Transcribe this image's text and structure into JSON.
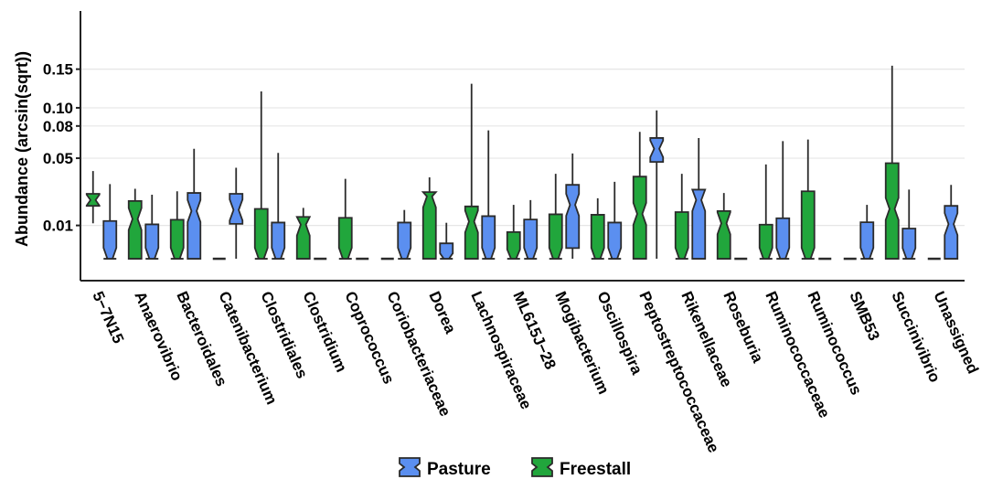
{
  "chart_data": {
    "type": "boxplot",
    "title": "",
    "xlabel": "",
    "ylabel": "Abundance (arcsin(sqrt))",
    "y_scale": "sqrt",
    "ylim": [
      0,
      0.19
    ],
    "y_ticks": [
      0.01,
      0.05,
      0.08,
      0.1,
      0.15
    ],
    "y_tick_labels": [
      "0.01",
      "0.05",
      "0.08",
      "0.10",
      "0.15"
    ],
    "grid": true,
    "legend_position": "bottom",
    "categories": [
      "5−7N15",
      "Anaerovibrio",
      "Bacteroidales",
      "Catenibacterium",
      "Clostridiales",
      "Clostridium",
      "Coprococcus",
      "Coriobacteriaceae",
      "Dorea",
      "Lachnospiraceae",
      "ML615J−28",
      "Mogibacterium",
      "Oscillospira",
      "Peptostreptococcaceae",
      "Rikenellaceae",
      "Roseburia",
      "Ruminococcaceae",
      "Ruminococcus",
      "SMB53",
      "Succinivibrio",
      "Unassigned"
    ],
    "series": [
      {
        "name": "Freestall",
        "color": "#21a63c",
        "boxes": [
          {
            "min": 0.0108,
            "q1": 0.0185,
            "median": 0.0215,
            "q3": 0.025,
            "max": 0.04
          },
          {
            "min": 0.0015,
            "q1": 0.0015,
            "median": 0.0125,
            "q3": 0.021,
            "max": 0.028
          },
          {
            "min": 0.0015,
            "q1": 0.0015,
            "median": 0.0015,
            "q3": 0.0122,
            "max": 0.0265
          },
          {
            "min": 0.0015,
            "q1": 0.0015,
            "median": 0.0015,
            "q3": 0.0015,
            "max": 0.0015
          },
          {
            "min": 0.0015,
            "q1": 0.0015,
            "median": 0.0015,
            "q3": 0.017,
            "max": 0.12
          },
          {
            "min": 0.0015,
            "q1": 0.0015,
            "median": 0.0103,
            "q3": 0.0134,
            "max": 0.0175
          },
          {
            "min": 0.0015,
            "q1": 0.0015,
            "median": 0.0015,
            "q3": 0.013,
            "max": 0.0345
          },
          {
            "min": 0.0015,
            "q1": 0.0015,
            "median": 0.0015,
            "q3": 0.0015,
            "max": 0.0015
          },
          {
            "min": 0.0015,
            "q1": 0.0015,
            "median": 0.0235,
            "q3": 0.026,
            "max": 0.0355
          },
          {
            "min": 0.0015,
            "q1": 0.0015,
            "median": 0.0115,
            "q3": 0.0182,
            "max": 0.13
          },
          {
            "min": 0.0015,
            "q1": 0.0015,
            "median": 0.0015,
            "q3": 0.0077,
            "max": 0.019
          },
          {
            "min": 0.0015,
            "q1": 0.0015,
            "median": 0.0015,
            "q3": 0.0145,
            "max": 0.038
          },
          {
            "min": 0.0015,
            "q1": 0.0015,
            "median": 0.0015,
            "q3": 0.0143,
            "max": 0.0225
          },
          {
            "min": 0.0015,
            "q1": 0.0015,
            "median": 0.0147,
            "q3": 0.036,
            "max": 0.074
          },
          {
            "min": 0.0015,
            "q1": 0.0015,
            "median": 0.0015,
            "q3": 0.0155,
            "max": 0.038
          },
          {
            "min": 0.0015,
            "q1": 0.0015,
            "median": 0.0108,
            "q3": 0.016,
            "max": 0.0255
          },
          {
            "min": 0.0015,
            "q1": 0.0015,
            "median": 0.0015,
            "q3": 0.0103,
            "max": 0.045
          },
          {
            "min": 0.0015,
            "q1": 0.0015,
            "median": 0.0015,
            "q3": 0.0265,
            "max": 0.0665
          },
          {
            "min": 0.0015,
            "q1": 0.0015,
            "median": 0.0015,
            "q3": 0.0015,
            "max": 0.0015
          },
          {
            "min": 0.0015,
            "q1": 0.0015,
            "median": 0.017,
            "q3": 0.046,
            "max": 0.155
          },
          {
            "min": 0.0015,
            "q1": 0.0015,
            "median": 0.0015,
            "q3": 0.0015,
            "max": 0.0015
          }
        ]
      },
      {
        "name": "Pasture",
        "color": "#5b8ff0",
        "boxes": [
          {
            "min": 0.0015,
            "q1": 0.0015,
            "median": 0.0015,
            "q3": 0.0117,
            "max": 0.031
          },
          {
            "min": 0.0015,
            "q1": 0.0015,
            "median": 0.0015,
            "q3": 0.0104,
            "max": 0.0245
          },
          {
            "min": 0.0015,
            "q1": 0.0015,
            "median": 0.016,
            "q3": 0.0255,
            "max": 0.058
          },
          {
            "min": 0.0015,
            "q1": 0.0106,
            "median": 0.0165,
            "q3": 0.025,
            "max": 0.0425
          },
          {
            "min": 0.0015,
            "q1": 0.0015,
            "median": 0.0015,
            "q3": 0.0111,
            "max": 0.0545
          },
          {
            "min": 0.0015,
            "q1": 0.0015,
            "median": 0.0015,
            "q3": 0.0015,
            "max": 0.0015
          },
          {
            "min": 0.0015,
            "q1": 0.0015,
            "median": 0.0015,
            "q3": 0.0015,
            "max": 0.0015
          },
          {
            "min": 0.0015,
            "q1": 0.0015,
            "median": 0.0015,
            "q3": 0.0111,
            "max": 0.0165
          },
          {
            "min": 0.0015,
            "q1": 0.0015,
            "median": 0.0015,
            "q3": 0.0045,
            "max": 0.011
          },
          {
            "min": 0.0015,
            "q1": 0.0015,
            "median": 0.0015,
            "q3": 0.0137,
            "max": 0.0755
          },
          {
            "min": 0.0015,
            "q1": 0.0015,
            "median": 0.0015,
            "q3": 0.0123,
            "max": 0.0215
          },
          {
            "min": 0.0015,
            "q1": 0.0034,
            "median": 0.019,
            "q3": 0.0305,
            "max": 0.054
          },
          {
            "min": 0.0015,
            "q1": 0.0015,
            "median": 0.0015,
            "q3": 0.0111,
            "max": 0.0325
          },
          {
            "min": 0.0015,
            "q1": 0.047,
            "median": 0.058,
            "q3": 0.068,
            "max": 0.097
          },
          {
            "min": 0.0015,
            "q1": 0.0015,
            "median": 0.0215,
            "q3": 0.0275,
            "max": 0.068
          },
          {
            "min": 0.0015,
            "q1": 0.0015,
            "median": 0.0015,
            "q3": 0.0015,
            "max": 0.0015
          },
          {
            "min": 0.0015,
            "q1": 0.0015,
            "median": 0.0015,
            "q3": 0.0128,
            "max": 0.065
          },
          {
            "min": 0.0015,
            "q1": 0.0015,
            "median": 0.0015,
            "q3": 0.0015,
            "max": 0.0015
          },
          {
            "min": 0.0015,
            "q1": 0.0015,
            "median": 0.0015,
            "q3": 0.0112,
            "max": 0.019
          },
          {
            "min": 0.0015,
            "q1": 0.0015,
            "median": 0.0015,
            "q3": 0.0089,
            "max": 0.0275
          },
          {
            "min": 0.0015,
            "q1": 0.0015,
            "median": 0.0105,
            "q3": 0.0185,
            "max": 0.0305
          }
        ]
      }
    ],
    "legend": [
      {
        "label": "Pasture",
        "color": "#5b8ff0"
      },
      {
        "label": "Freestall",
        "color": "#21a63c"
      }
    ]
  }
}
